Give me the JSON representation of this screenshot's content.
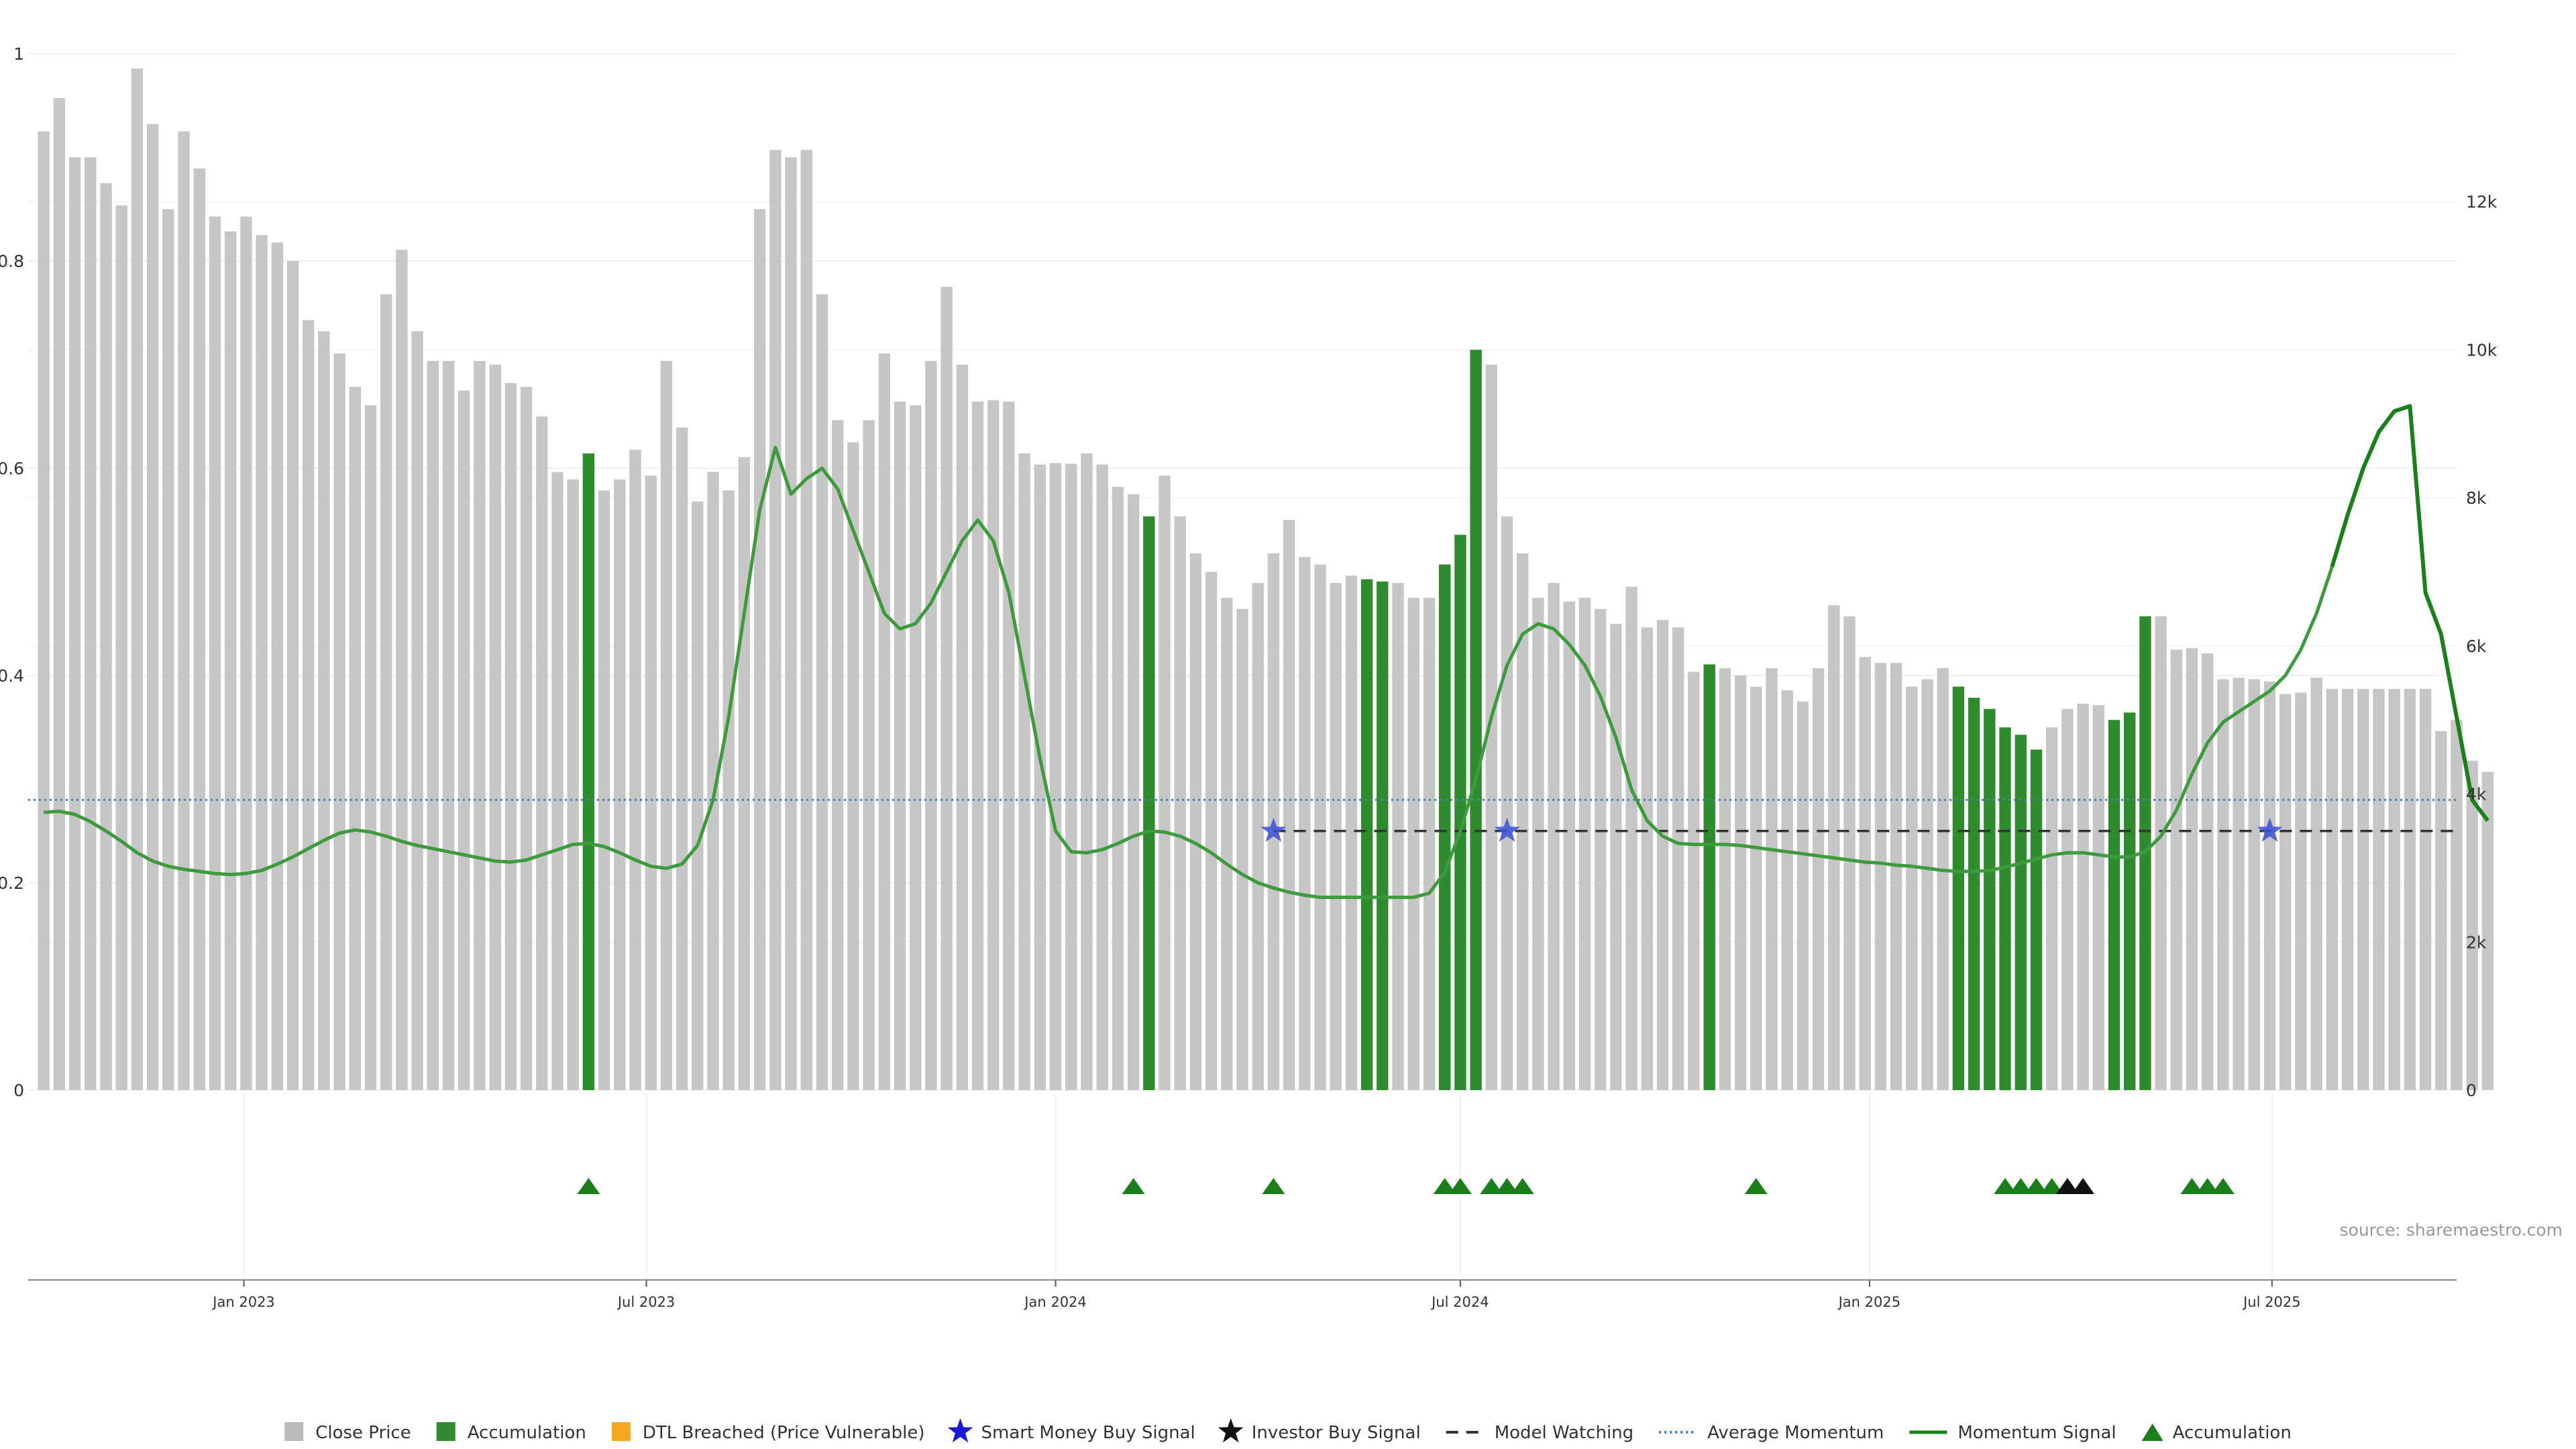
{
  "chart_data": {
    "type": "bar",
    "source": "source: sharemaestro.com",
    "left_axis": {
      "ylim": [
        0,
        1
      ],
      "ticks": [
        "0",
        "0.2",
        "0.4",
        "0.6",
        "0.8",
        "1"
      ],
      "tick_values": [
        0,
        0.2,
        0.4,
        0.6,
        0.8,
        1
      ]
    },
    "right_axis": {
      "ylim": [
        0,
        14000
      ],
      "ticks": [
        "0",
        "2k",
        "4k",
        "6k",
        "8k",
        "10k",
        "12k"
      ],
      "tick_values": [
        0,
        2000,
        4000,
        6000,
        8000,
        10000,
        12000
      ]
    },
    "x_axis": {
      "start": "2022-09-26",
      "end": "2025-09-22",
      "ticks": [
        {
          "date": "2023-01-01",
          "label": "Jan 2023"
        },
        {
          "date": "2023-07-01",
          "label": "Jul 2023"
        },
        {
          "date": "2024-01-01",
          "label": "Jan 2024"
        },
        {
          "date": "2024-07-01",
          "label": "Jul 2024"
        },
        {
          "date": "2025-01-01",
          "label": "Jan 2025"
        },
        {
          "date": "2025-07-01",
          "label": "Jul 2025"
        }
      ]
    },
    "bars": {
      "name": "Close Price",
      "first_date": "2022-10-03",
      "interval_days": 7,
      "values": [
        12950,
        13400,
        12600,
        12600,
        12250,
        11950,
        13800,
        13050,
        11900,
        12950,
        12450,
        11800,
        11600,
        11800,
        11550,
        11450,
        11200,
        10400,
        10250,
        9950,
        9500,
        9250,
        10750,
        11350,
        10250,
        9850,
        9850,
        9450,
        9850,
        9800,
        9550,
        9500,
        9100,
        8350,
        8250,
        8600,
        8100,
        8250,
        8650,
        8300,
        9850,
        8950,
        7950,
        8350,
        8100,
        8550,
        11900,
        12700,
        12600,
        12700,
        10750,
        9050,
        8750,
        9050,
        9950,
        9300,
        9250,
        9850,
        10850,
        9800,
        9300,
        9320,
        9300,
        8600,
        8450,
        8470,
        8460,
        8600,
        8450,
        8150,
        8050,
        7750,
        8300,
        7750,
        7250,
        7000,
        6650,
        6500,
        6850,
        7250,
        7700,
        7200,
        7100,
        6850,
        6950,
        6900,
        6870,
        6850,
        6650,
        6650,
        7100,
        7500,
        10000,
        9800,
        7750,
        7250,
        6650,
        6850,
        6600,
        6650,
        6500,
        6300,
        6800,
        6250,
        6350,
        6250,
        5650,
        5750,
        5700,
        5600,
        5450,
        5700,
        5400,
        5250,
        5700,
        6550,
        6400,
        5850,
        5770,
        5770,
        5450,
        5550,
        5700,
        5450,
        5300,
        5150,
        4900,
        4800,
        4600,
        4900,
        5150,
        5220,
        5200,
        5000,
        5100,
        6400,
        6400,
        5950,
        5970,
        5900,
        5550,
        5570,
        5550,
        5520,
        5350,
        5370,
        5570,
        5420,
        5420,
        5420,
        5420,
        5420,
        5420,
        5420,
        4850,
        5000,
        4450,
        4300
      ],
      "highlight_color": "#2e8b2e",
      "highlight_indices": [
        35,
        71,
        85,
        86,
        90,
        91,
        92,
        107,
        123,
        124,
        125,
        126,
        127,
        128,
        133,
        134,
        135
      ]
    },
    "momentum": {
      "name": "Momentum Signal",
      "first_date": "2022-10-03",
      "interval_days": 7,
      "values": [
        0.268,
        0.269,
        0.266,
        0.259,
        0.25,
        0.24,
        0.229,
        0.221,
        0.216,
        0.213,
        0.211,
        0.209,
        0.208,
        0.209,
        0.212,
        0.218,
        0.225,
        0.233,
        0.241,
        0.248,
        0.251,
        0.249,
        0.245,
        0.24,
        0.236,
        0.233,
        0.23,
        0.227,
        0.224,
        0.221,
        0.22,
        0.222,
        0.227,
        0.232,
        0.237,
        0.238,
        0.235,
        0.229,
        0.222,
        0.216,
        0.214,
        0.218,
        0.236,
        0.28,
        0.36,
        0.46,
        0.56,
        0.62,
        0.575,
        0.59,
        0.6,
        0.58,
        0.54,
        0.5,
        0.46,
        0.445,
        0.45,
        0.47,
        0.5,
        0.53,
        0.55,
        0.53,
        0.48,
        0.4,
        0.32,
        0.25,
        0.23,
        0.229,
        0.232,
        0.238,
        0.245,
        0.25,
        0.249,
        0.245,
        0.238,
        0.229,
        0.218,
        0.208,
        0.2,
        0.195,
        0.191,
        0.188,
        0.186,
        0.186,
        0.186,
        0.186,
        0.186,
        0.186,
        0.186,
        0.19,
        0.21,
        0.25,
        0.3,
        0.36,
        0.41,
        0.44,
        0.45,
        0.445,
        0.43,
        0.41,
        0.38,
        0.34,
        0.29,
        0.26,
        0.245,
        0.238,
        0.237,
        0.237,
        0.237,
        0.236,
        0.234,
        0.232,
        0.23,
        0.228,
        0.226,
        0.224,
        0.222,
        0.22,
        0.219,
        0.217,
        0.216,
        0.214,
        0.212,
        0.211,
        0.211,
        0.212,
        0.215,
        0.219,
        0.223,
        0.227,
        0.229,
        0.229,
        0.227,
        0.225,
        0.225,
        0.23,
        0.245,
        0.27,
        0.305,
        0.335,
        0.355,
        0.365,
        0.375,
        0.385,
        0.4,
        0.425,
        0.46,
        0.505,
        0.555,
        0.6,
        0.635,
        0.655,
        0.66,
        0.48,
        0.44,
        0.36,
        0.28,
        0.26
      ],
      "color": "#1a801a",
      "colored_from_date": "2025-07-28"
    },
    "average_momentum": {
      "name": "Average Momentum",
      "value": 0.28,
      "color": "#4a7fb0"
    },
    "model_watching": {
      "name": "Model Watching",
      "value": 0.25,
      "start_date": "2024-04-08",
      "end_date": "2025-09-22"
    },
    "smart_money_buy": {
      "name": "Smart Money Buy Signal",
      "points": [
        {
          "date": "2024-04-08",
          "y": 0.25
        },
        {
          "date": "2024-07-22",
          "y": 0.25
        },
        {
          "date": "2025-06-30",
          "y": 0.25
        }
      ]
    },
    "accumulation_triangles": {
      "name": "Accumulation",
      "color": "#1a7f1a",
      "black_color": "#111111",
      "dates": [
        "2023-06-05",
        "2024-02-05",
        "2024-04-08",
        "2024-06-24",
        "2024-07-01",
        "2024-07-15",
        "2024-07-22",
        "2024-07-29",
        "2024-11-11",
        "2025-03-03",
        "2025-03-10",
        "2025-03-17",
        "2025-03-24",
        "2025-03-31",
        "2025-04-07",
        "2025-05-26",
        "2025-06-02",
        "2025-06-09"
      ],
      "black_dates": [
        "2025-03-31",
        "2025-04-07"
      ]
    },
    "legend": [
      {
        "key": "close",
        "label": "Close Price",
        "color": "#bbbbbb"
      },
      {
        "key": "accum_bar",
        "label": "Accumulation",
        "color": "#2e8b2e"
      },
      {
        "key": "dtl",
        "label": "DTL Breached (Price Vulnerable)",
        "color": "#f5a623"
      },
      {
        "key": "smart",
        "label": "Smart Money Buy Signal",
        "color": "#1a1ad6"
      },
      {
        "key": "investor",
        "label": "Investor Buy Signal",
        "color": "#111111"
      },
      {
        "key": "watch",
        "label": "Model Watching",
        "color": "#333333"
      },
      {
        "key": "avg",
        "label": "Average Momentum",
        "color": "#4a7fb0"
      },
      {
        "key": "mom",
        "label": "Momentum Signal",
        "color": "#1a801a"
      },
      {
        "key": "tri",
        "label": "Accumulation",
        "color": "#1a7f1a"
      }
    ],
    "grid": true,
    "legend_position": "bottom-center"
  }
}
